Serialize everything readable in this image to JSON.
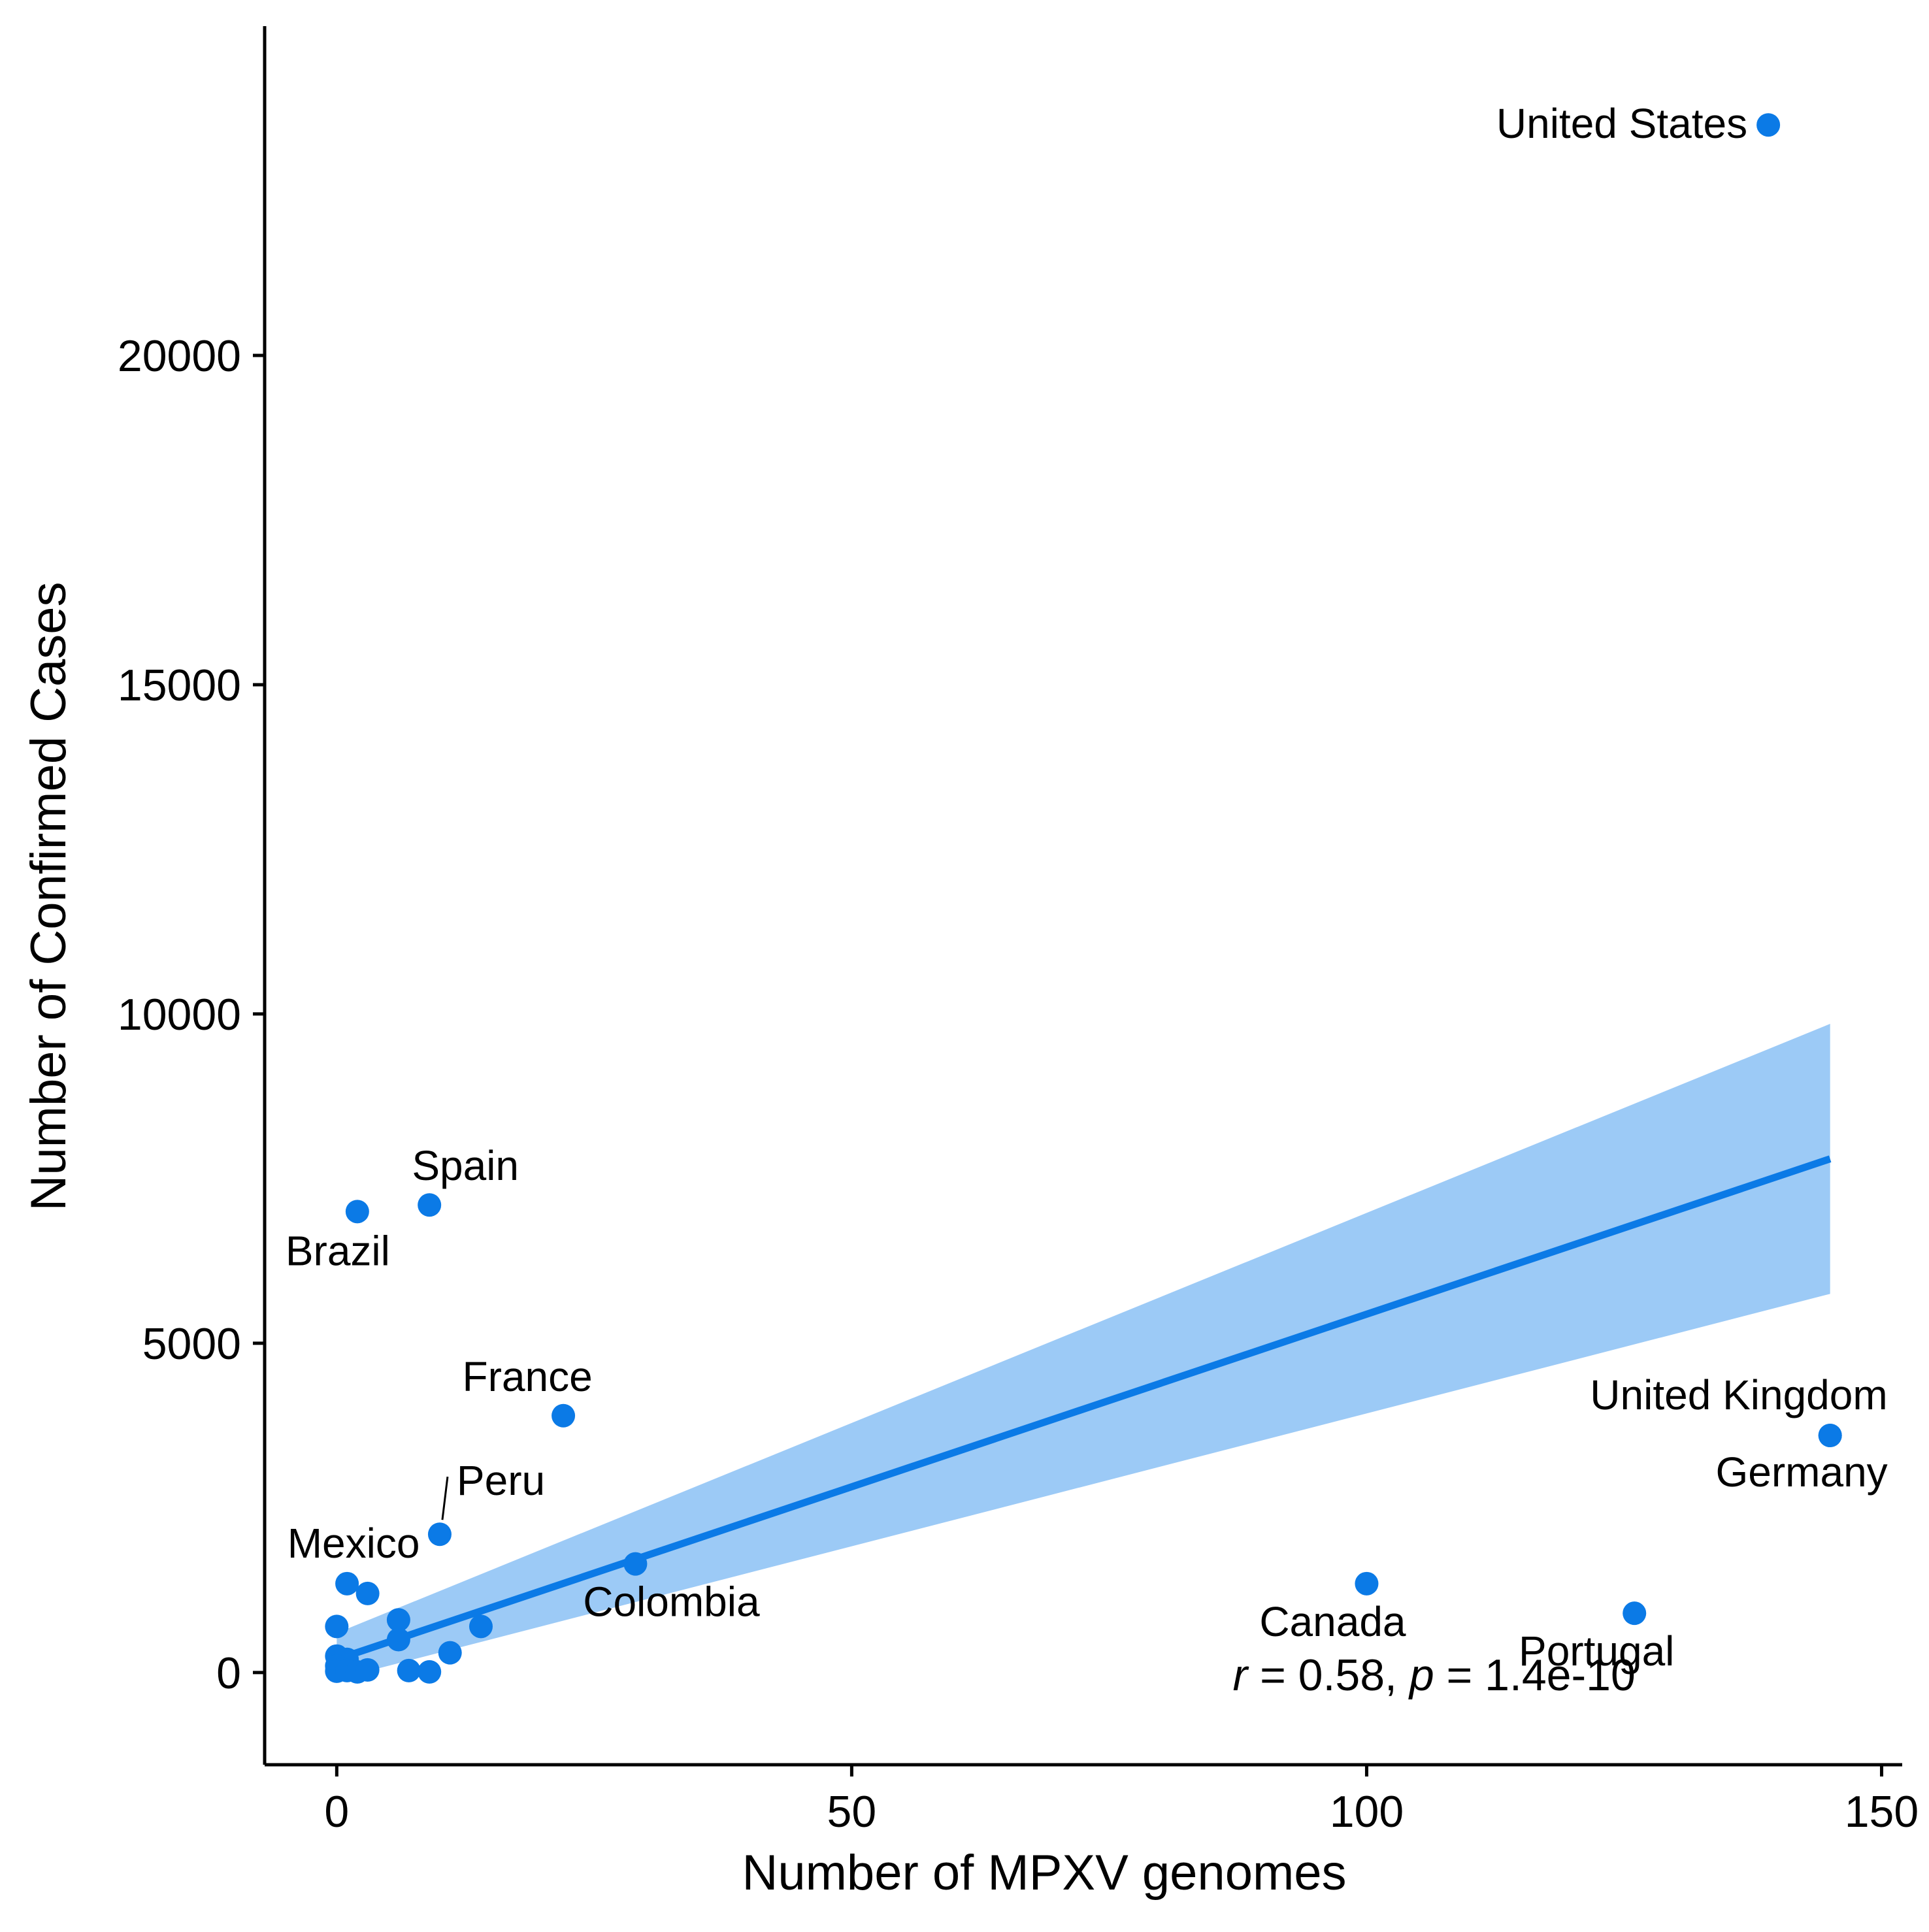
{
  "chart_data": {
    "type": "scatter",
    "xlabel": "Number of MPXV genomes",
    "ylabel": "Number of Confirmed Cases",
    "xlim": [
      -7,
      152
    ],
    "ylim": [
      -1400,
      25000
    ],
    "x_ticks": [
      0,
      50,
      100,
      150
    ],
    "y_ticks": [
      0,
      5000,
      10000,
      15000,
      20000
    ],
    "x_tick_labels": [
      "0",
      "50",
      "100",
      "150"
    ],
    "y_tick_labels": [
      "0",
      "5000",
      "10000",
      "15000",
      "20000"
    ],
    "grid": false,
    "legend": "none",
    "colors": {
      "points": "#0b7ae6",
      "fit_line": "#0b7ae6",
      "confidence_band": "#9ccaf6"
    },
    "points": [
      {
        "label": "United States",
        "x": 139,
        "y": 23500
      },
      {
        "label": "United Kingdom",
        "x": 145,
        "y": 3600
      },
      {
        "label": "Germany",
        "x": 145,
        "y": 3600
      },
      {
        "label": "Canada",
        "x": 100,
        "y": 1350
      },
      {
        "label": "Portugal",
        "x": 126,
        "y": 900
      },
      {
        "label": "Spain",
        "x": 9,
        "y": 7100
      },
      {
        "label": "Brazil",
        "x": 2,
        "y": 7000
      },
      {
        "label": "France",
        "x": 22,
        "y": 3900
      },
      {
        "label": "Peru",
        "x": 10,
        "y": 2100
      },
      {
        "label": "Mexico",
        "x": 1,
        "y": 1350
      },
      {
        "label": "Colombia",
        "x": 29,
        "y": 1650
      },
      {
        "label": "",
        "x": 3,
        "y": 1200
      },
      {
        "label": "",
        "x": 0,
        "y": 700
      },
      {
        "label": "",
        "x": 6,
        "y": 800
      },
      {
        "label": "",
        "x": 6,
        "y": 500
      },
      {
        "label": "",
        "x": 14,
        "y": 700
      },
      {
        "label": "",
        "x": 11,
        "y": 300
      },
      {
        "label": "",
        "x": 0,
        "y": 250
      },
      {
        "label": "",
        "x": 1,
        "y": 200
      },
      {
        "label": "",
        "x": 0,
        "y": 100
      },
      {
        "label": "",
        "x": 0,
        "y": 20
      },
      {
        "label": "",
        "x": 1,
        "y": 30
      },
      {
        "label": "",
        "x": 2,
        "y": 10
      },
      {
        "label": "",
        "x": 3,
        "y": 40
      },
      {
        "label": "",
        "x": 7,
        "y": 30
      },
      {
        "label": "",
        "x": 9,
        "y": 10
      }
    ],
    "fit": {
      "x": [
        0,
        145
      ],
      "y": [
        200,
        7800
      ],
      "band_upper": [
        600,
        9850
      ],
      "band_lower": [
        -100,
        5750
      ]
    },
    "annotation": {
      "r_symbol": "r",
      "r_text": " = 0.58, ",
      "p_symbol": "p",
      "p_text": " = 1.4e-10",
      "x": 87,
      "y": -50
    }
  }
}
